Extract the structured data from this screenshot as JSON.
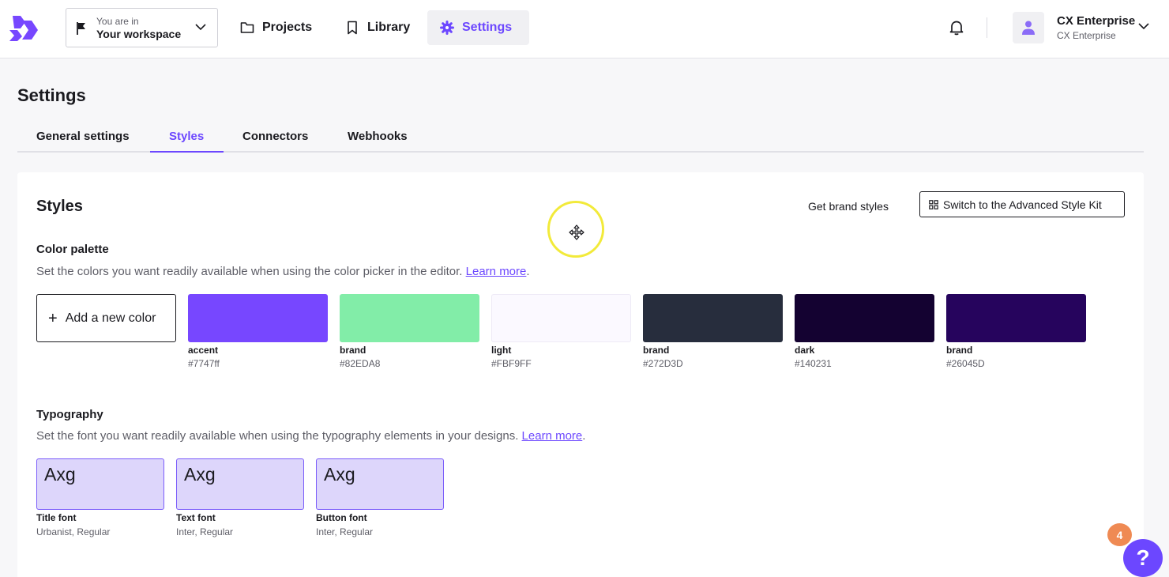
{
  "header": {
    "workspace": {
      "prefix": "You are in",
      "name": "Your workspace"
    },
    "nav": [
      {
        "label": "Projects",
        "icon": "folder-icon"
      },
      {
        "label": "Library",
        "icon": "bookmark-icon"
      },
      {
        "label": "Settings",
        "icon": "gear-icon",
        "active": true
      }
    ],
    "account": {
      "name": "CX Enterprise",
      "org": "CX Enterprise"
    }
  },
  "page": {
    "title": "Settings",
    "tabs": [
      {
        "label": "General settings"
      },
      {
        "label": "Styles",
        "active": true
      },
      {
        "label": "Connectors"
      },
      {
        "label": "Webhooks"
      }
    ]
  },
  "styles": {
    "title": "Styles",
    "get_brand_label": "Get brand styles",
    "advanced_kit_label": "Switch to the Advanced Style Kit",
    "color_palette": {
      "title": "Color palette",
      "description": "Set the colors you want readily available when using the color picker in the editor.",
      "learn_more": "Learn more",
      "add_label": "Add a new color",
      "colors": [
        {
          "name": "accent",
          "hex": "#7747ff"
        },
        {
          "name": "brand",
          "hex": "#82EDA8"
        },
        {
          "name": "light",
          "hex": "#FBF9FF"
        },
        {
          "name": "brand",
          "hex": "#272D3D"
        },
        {
          "name": "dark",
          "hex": "#140231"
        },
        {
          "name": "brand",
          "hex": "#26045D"
        }
      ]
    },
    "typography": {
      "title": "Typography",
      "description": "Set the font you want readily available when using the typography elements in your designs.",
      "learn_more": "Learn more",
      "fonts": [
        {
          "sample": "Axg",
          "name": "Title font",
          "family": "Urbanist, Regular"
        },
        {
          "sample": "Axg",
          "name": "Text font",
          "family": "Inter, Regular"
        },
        {
          "sample": "Axg",
          "name": "Button font",
          "family": "Inter, Regular"
        }
      ]
    }
  },
  "overlays": {
    "notification_count": "4",
    "help_label": "?"
  },
  "colors": {
    "accent": "#6c47ff",
    "active_tab_bg": "#f0f0f3",
    "font_chip_bg": "#ddd6fb",
    "badge": "#ef8a53"
  }
}
